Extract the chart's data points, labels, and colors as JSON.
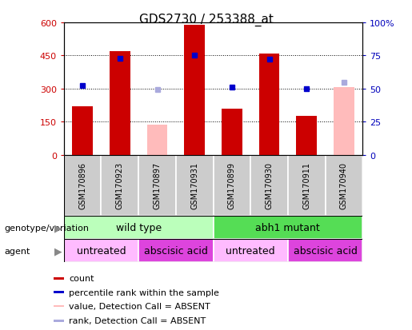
{
  "title": "GDS2730 / 253388_at",
  "samples": [
    "GSM170896",
    "GSM170923",
    "GSM170897",
    "GSM170931",
    "GSM170899",
    "GSM170930",
    "GSM170911",
    "GSM170940"
  ],
  "count_values": [
    220,
    470,
    null,
    590,
    210,
    460,
    175,
    null
  ],
  "count_absent_values": [
    null,
    null,
    135,
    null,
    null,
    null,
    null,
    305
  ],
  "rank_values": [
    52,
    73,
    null,
    75,
    51,
    72,
    50,
    null
  ],
  "rank_absent_values": [
    null,
    null,
    49,
    null,
    null,
    null,
    null,
    55
  ],
  "ylim_left": [
    0,
    600
  ],
  "ylim_right": [
    0,
    100
  ],
  "yticks_left": [
    0,
    150,
    300,
    450,
    600
  ],
  "yticks_right": [
    0,
    25,
    50,
    75,
    100
  ],
  "ytick_labels_left": [
    "0",
    "150",
    "300",
    "450",
    "600"
  ],
  "ytick_labels_right": [
    "0",
    "25",
    "50",
    "75",
    "100%"
  ],
  "bar_width": 0.55,
  "bar_color_red": "#cc0000",
  "bar_color_pink": "#ffbbbb",
  "marker_color_blue": "#0000cc",
  "marker_color_lightblue": "#aaaadd",
  "genotype_groups": [
    {
      "label": "wild type",
      "span": [
        0,
        4
      ],
      "color": "#bbffbb"
    },
    {
      "label": "abh1 mutant",
      "span": [
        4,
        8
      ],
      "color": "#55dd55"
    }
  ],
  "agent_groups": [
    {
      "label": "untreated",
      "span": [
        0,
        2
      ],
      "color": "#ffbbff"
    },
    {
      "label": "abscisic acid",
      "span": [
        2,
        4
      ],
      "color": "#dd44dd"
    },
    {
      "label": "untreated",
      "span": [
        4,
        6
      ],
      "color": "#ffbbff"
    },
    {
      "label": "abscisic acid",
      "span": [
        6,
        8
      ],
      "color": "#dd44dd"
    }
  ],
  "legend_items": [
    {
      "label": "count",
      "color": "#cc0000"
    },
    {
      "label": "percentile rank within the sample",
      "color": "#0000cc"
    },
    {
      "label": "value, Detection Call = ABSENT",
      "color": "#ffbbbb"
    },
    {
      "label": "rank, Detection Call = ABSENT",
      "color": "#aaaadd"
    }
  ],
  "left_label_color": "#cc0000",
  "right_label_color": "#0000bb",
  "bg_color": "#ffffff",
  "sample_bg_color": "#cccccc",
  "plot_bg_color": "#ffffff"
}
